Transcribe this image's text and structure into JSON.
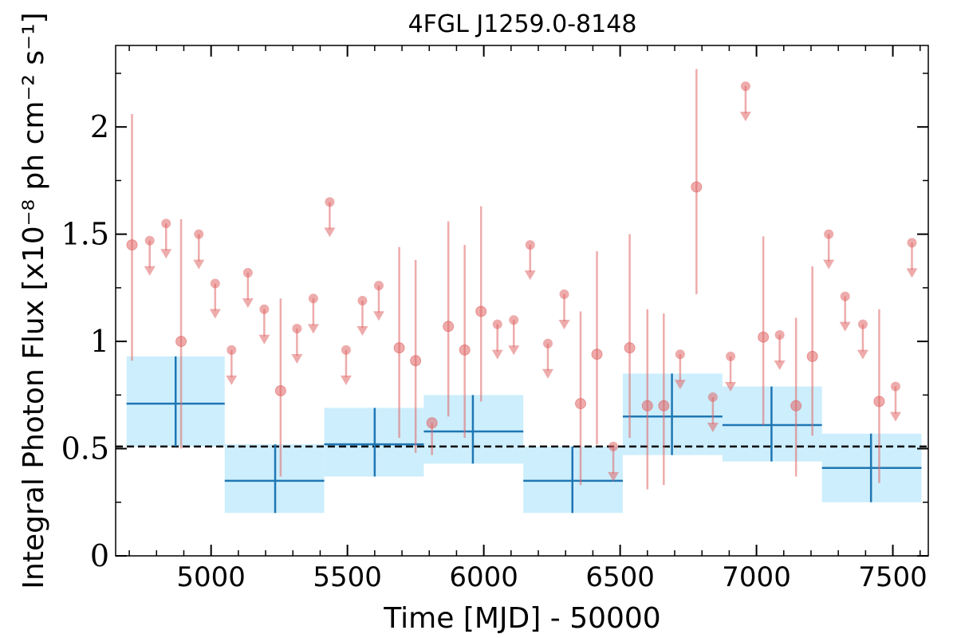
{
  "chart_data": {
    "type": "scatter",
    "title": "4FGL J1259.0-8148",
    "xlabel": "Time [MJD] - 50000",
    "ylabel": "Integral Photon Flux [x10⁻⁸ ph cm⁻² s⁻¹]",
    "xlim": [
      4650,
      7630
    ],
    "ylim": [
      0,
      2.38
    ],
    "xticks": [
      5000,
      5500,
      6000,
      6500,
      7000,
      7500
    ],
    "xtick_labels": [
      "5000",
      "5500",
      "6000",
      "6500",
      "7000",
      "7500"
    ],
    "yticks": [
      0,
      0.5,
      1,
      1.5,
      2
    ],
    "ytick_labels": [
      "0",
      "0.5",
      "1",
      "1.5",
      "2"
    ],
    "mean_flux": 0.51,
    "colors": {
      "points": "#e06666",
      "bins": "#1f77b4",
      "band": "#cdeefc",
      "mean_line": "#000000"
    },
    "binned": [
      {
        "x": 4870,
        "x_lo": 4690,
        "x_hi": 5050,
        "y": 0.71,
        "y_lo": 0.51,
        "y_hi": 0.93
      },
      {
        "x": 5235,
        "x_lo": 5050,
        "x_hi": 5415,
        "y": 0.35,
        "y_lo": 0.2,
        "y_hi": 0.52
      },
      {
        "x": 5600,
        "x_lo": 5415,
        "x_hi": 5780,
        "y": 0.52,
        "y_lo": 0.37,
        "y_hi": 0.69
      },
      {
        "x": 5960,
        "x_lo": 5780,
        "x_hi": 6145,
        "y": 0.58,
        "y_lo": 0.43,
        "y_hi": 0.75
      },
      {
        "x": 6325,
        "x_lo": 6145,
        "x_hi": 6510,
        "y": 0.35,
        "y_lo": 0.2,
        "y_hi": 0.51
      },
      {
        "x": 6690,
        "x_lo": 6510,
        "x_hi": 6875,
        "y": 0.65,
        "y_lo": 0.47,
        "y_hi": 0.85
      },
      {
        "x": 7055,
        "x_lo": 6875,
        "x_hi": 7240,
        "y": 0.61,
        "y_lo": 0.44,
        "y_hi": 0.79
      },
      {
        "x": 7420,
        "x_lo": 7240,
        "x_hi": 7605,
        "y": 0.41,
        "y_lo": 0.25,
        "y_hi": 0.57
      }
    ],
    "detections": [
      {
        "x": 4710,
        "y": 1.45,
        "y_lo": 0.91,
        "y_hi": 2.06
      },
      {
        "x": 4890,
        "y": 1.0,
        "y_lo": 0.5,
        "y_hi": 1.57
      },
      {
        "x": 5255,
        "y": 0.77,
        "y_lo": 0.37,
        "y_hi": 1.2
      },
      {
        "x": 5690,
        "y": 0.97,
        "y_lo": 0.55,
        "y_hi": 1.44
      },
      {
        "x": 5750,
        "y": 0.91,
        "y_lo": 0.48,
        "y_hi": 1.38
      },
      {
        "x": 5810,
        "y": 0.62,
        "y_lo": 0.47,
        "y_hi": 0.62
      },
      {
        "x": 5870,
        "y": 1.07,
        "y_lo": 0.65,
        "y_hi": 1.56
      },
      {
        "x": 5930,
        "y": 0.96,
        "y_lo": 0.55,
        "y_hi": 1.45
      },
      {
        "x": 5990,
        "y": 1.14,
        "y_lo": 0.72,
        "y_hi": 1.63
      },
      {
        "x": 6355,
        "y": 0.71,
        "y_lo": 0.33,
        "y_hi": 1.14
      },
      {
        "x": 6415,
        "y": 0.94,
        "y_lo": 0.52,
        "y_hi": 1.42
      },
      {
        "x": 6535,
        "y": 0.97,
        "y_lo": 0.55,
        "y_hi": 1.5
      },
      {
        "x": 6600,
        "y": 0.7,
        "y_lo": 0.31,
        "y_hi": 1.15
      },
      {
        "x": 6660,
        "y": 0.7,
        "y_lo": 0.33,
        "y_hi": 1.13
      },
      {
        "x": 6780,
        "y": 1.72,
        "y_lo": 1.22,
        "y_hi": 2.27
      },
      {
        "x": 7025,
        "y": 1.02,
        "y_lo": 0.61,
        "y_hi": 1.49
      },
      {
        "x": 7145,
        "y": 0.7,
        "y_lo": 0.37,
        "y_hi": 1.11
      },
      {
        "x": 7205,
        "y": 0.93,
        "y_lo": 0.56,
        "y_hi": 1.35
      },
      {
        "x": 7450,
        "y": 0.72,
        "y_lo": 0.34,
        "y_hi": 1.15
      }
    ],
    "upper_limits": [
      {
        "x": 4775,
        "y": 1.47
      },
      {
        "x": 4835,
        "y": 1.55
      },
      {
        "x": 4955,
        "y": 1.5
      },
      {
        "x": 5015,
        "y": 1.27
      },
      {
        "x": 5075,
        "y": 0.96
      },
      {
        "x": 5135,
        "y": 1.32
      },
      {
        "x": 5195,
        "y": 1.15
      },
      {
        "x": 5315,
        "y": 1.06
      },
      {
        "x": 5375,
        "y": 1.2
      },
      {
        "x": 5435,
        "y": 1.65
      },
      {
        "x": 5495,
        "y": 0.96
      },
      {
        "x": 5555,
        "y": 1.19
      },
      {
        "x": 5615,
        "y": 1.26
      },
      {
        "x": 6050,
        "y": 1.08
      },
      {
        "x": 6110,
        "y": 1.1
      },
      {
        "x": 6170,
        "y": 1.45
      },
      {
        "x": 6235,
        "y": 0.99
      },
      {
        "x": 6295,
        "y": 1.22
      },
      {
        "x": 6475,
        "y": 0.51
      },
      {
        "x": 6720,
        "y": 0.94
      },
      {
        "x": 6840,
        "y": 0.74
      },
      {
        "x": 6905,
        "y": 0.93
      },
      {
        "x": 6960,
        "y": 2.19
      },
      {
        "x": 7085,
        "y": 1.03
      },
      {
        "x": 7265,
        "y": 1.5
      },
      {
        "x": 7325,
        "y": 1.21
      },
      {
        "x": 7390,
        "y": 1.08
      },
      {
        "x": 7510,
        "y": 0.79
      },
      {
        "x": 7570,
        "y": 1.46
      }
    ]
  }
}
